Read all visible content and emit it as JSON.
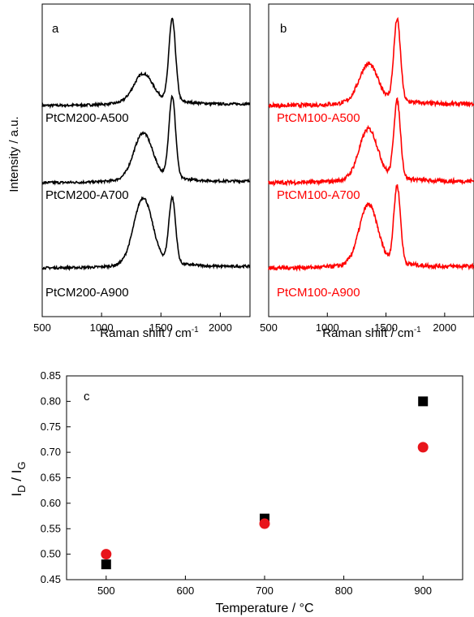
{
  "chart_data": [
    {
      "panel": "a",
      "type": "line",
      "xlabel": "Raman shift / cm",
      "xlabel_sup": "-1",
      "ylabel": "Intensity / a.u.",
      "xlim": [
        500,
        2250
      ],
      "xticks": [
        "500",
        "1000",
        "1500",
        "2000"
      ],
      "color": "#000000",
      "series": [
        {
          "name": "PtCM200-A500",
          "d_ratio": 0.33,
          "g_height": 1.0
        },
        {
          "name": "PtCM200-A700",
          "d_ratio": 0.55,
          "g_height": 1.0
        },
        {
          "name": "PtCM200-A900",
          "d_ratio": 0.8,
          "g_height": 0.8
        }
      ]
    },
    {
      "panel": "b",
      "type": "line",
      "xlabel": "Raman shift / cm",
      "xlabel_sup": "-1",
      "xlim": [
        500,
        2250
      ],
      "xticks": [
        "500",
        "1000",
        "1500",
        "2000"
      ],
      "color": "#ff0000",
      "series": [
        {
          "name": "PtCM100-A500",
          "d_ratio": 0.45,
          "g_height": 1.0
        },
        {
          "name": "PtCM100-A700",
          "d_ratio": 0.6,
          "g_height": 0.95
        },
        {
          "name": "PtCM100-A900",
          "d_ratio": 0.72,
          "g_height": 0.95
        }
      ]
    },
    {
      "panel": "c",
      "type": "scatter",
      "xlabel": "Temperature / °C",
      "ylabel_main": "I",
      "ylabel_sub1": "D",
      "ylabel_mid": " / I",
      "ylabel_sub2": "G",
      "xlim": [
        450,
        950
      ],
      "ylim": [
        0.45,
        0.85
      ],
      "xticks": [
        "500",
        "600",
        "700",
        "800",
        "900"
      ],
      "yticks": [
        "0.45",
        "0.50",
        "0.55",
        "0.60",
        "0.65",
        "0.70",
        "0.75",
        "0.80",
        "0.85"
      ],
      "series": [
        {
          "marker": "square",
          "color": "#000000",
          "x": [
            500,
            700,
            900
          ],
          "y": [
            0.48,
            0.57,
            0.8
          ]
        },
        {
          "marker": "circle",
          "color": "#e8151b",
          "x": [
            500,
            700,
            900
          ],
          "y": [
            0.5,
            0.56,
            0.71
          ]
        }
      ]
    }
  ]
}
